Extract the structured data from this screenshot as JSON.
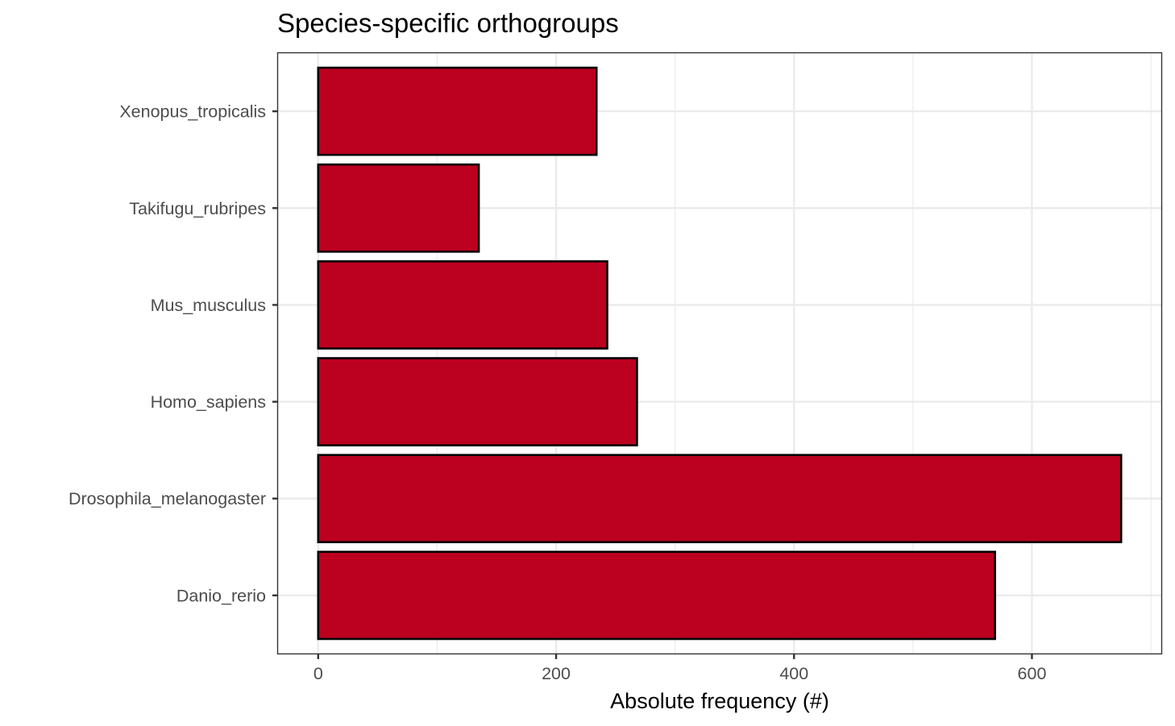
{
  "chart_data": {
    "type": "bar",
    "orientation": "horizontal",
    "title": "Species-specific orthogroups",
    "xlabel": "Absolute frequency (#)",
    "ylabel": "",
    "categories": [
      "Danio_rerio",
      "Drosophila_melanogaster",
      "Homo_sapiens",
      "Mus_musculus",
      "Takifugu_rubripes",
      "Xenopus_tropicalis"
    ],
    "values": [
      569,
      675,
      268,
      243,
      135,
      234
    ],
    "xlim": [
      -33.75,
      708.75
    ],
    "xticks": [
      0,
      200,
      400,
      600
    ],
    "grid": true,
    "legend": "none",
    "colors": {
      "bar_fill": "#BC0020",
      "bar_stroke": "#000000",
      "grid": "#EBEBEB",
      "panel_border": "#333333",
      "tick_text": "#4D4D4D"
    }
  }
}
